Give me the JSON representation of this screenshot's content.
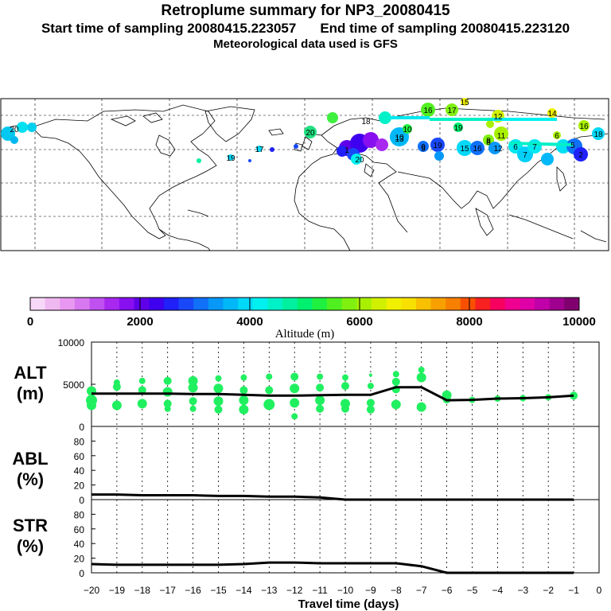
{
  "header": {
    "title": "Retroplume summary for NP3_20080415",
    "start_label": "Start time of sampling 20080415.223057",
    "end_label": "End time of sampling 20080415.223120",
    "met_label": "Meteorological data used is GFS"
  },
  "colorbar": {
    "ticks": [
      "0",
      "2000",
      "4000",
      "6000",
      "8000",
      "10000"
    ],
    "title": "Altitude (m)",
    "colors": [
      "#f8d8f8",
      "#f0b8f0",
      "#e898f0",
      "#d878f0",
      "#c050f0",
      "#a828f0",
      "#8810f0",
      "#6000e8",
      "#4000f0",
      "#2020f8",
      "#1848f8",
      "#1070f8",
      "#0898f8",
      "#00b8f8",
      "#00d8f8",
      "#00f0f0",
      "#00f0c8",
      "#00f0a0",
      "#00f070",
      "#20f040",
      "#50f020",
      "#80f010",
      "#a8f000",
      "#d0f000",
      "#f0f000",
      "#f8e000",
      "#f8c000",
      "#f8a000",
      "#f88000",
      "#f85000",
      "#f82020",
      "#f80060",
      "#f00090",
      "#e000a8",
      "#c000a8",
      "#a00090",
      "#800070"
    ]
  },
  "map": {
    "plume_labels": [
      "20",
      "16",
      "17",
      "15",
      "14",
      "12",
      "10",
      "19",
      "13",
      "11",
      "9",
      "8",
      "7",
      "6",
      "18",
      "20",
      "19",
      "17",
      "16",
      "15",
      "12",
      "10",
      "9",
      "8",
      "7",
      "6",
      "5",
      "2",
      "1",
      "20",
      "16",
      "19",
      "18"
    ]
  },
  "panels": {
    "alt": {
      "label_line1": "ALT",
      "label_line2": "(m)",
      "yticks": [
        "10000",
        "5000",
        "0"
      ]
    },
    "abl": {
      "label_line1": "ABL",
      "label_line2": "(%)",
      "yticks": [
        "80",
        "60",
        "40",
        "20",
        "0"
      ]
    },
    "str": {
      "label_line1": "STR",
      "label_line2": "(%)",
      "yticks": [
        "80",
        "60",
        "40",
        "20",
        "0"
      ]
    }
  },
  "xaxis": {
    "ticks": [
      "−20",
      "−19",
      "−18",
      "−17",
      "−16",
      "−15",
      "−14",
      "−13",
      "−12",
      "−11",
      "−10",
      "−9",
      "−8",
      "−7",
      "−6",
      "−5",
      "−4",
      "−3",
      "−2",
      "−1",
      "0"
    ],
    "title": "Travel time (days)"
  },
  "chart_data": [
    {
      "type": "line",
      "name": "ALT",
      "xlabel": "Travel time (days)",
      "ylabel": "ALT (m)",
      "xlim": [
        -20,
        0
      ],
      "ylim": [
        0,
        10000
      ],
      "x": [
        -20,
        -19,
        -18,
        -17,
        -16,
        -15,
        -14,
        -13,
        -12,
        -11,
        -10,
        -9,
        -8,
        -7,
        -6,
        -5,
        -4,
        -3,
        -2,
        -1
      ],
      "values": [
        3900,
        3900,
        3900,
        3900,
        3850,
        3850,
        3750,
        3650,
        3650,
        3700,
        3750,
        3750,
        4650,
        4650,
        3100,
        3150,
        3300,
        3350,
        3450,
        3650
      ],
      "scatter": [
        {
          "x": -20,
          "y": [
            4200,
            3100,
            2500
          ],
          "r": [
            6,
            7,
            6
          ]
        },
        {
          "x": -19,
          "y": [
            5200,
            4700,
            2500
          ],
          "r": [
            4,
            5,
            6
          ]
        },
        {
          "x": -18,
          "y": [
            5400,
            4300,
            2700
          ],
          "r": [
            4,
            5,
            6
          ]
        },
        {
          "x": -17,
          "y": [
            5400,
            4100,
            2700,
            2100
          ],
          "r": [
            5,
            6,
            5,
            4
          ]
        },
        {
          "x": -16,
          "y": [
            5400,
            4600,
            3000,
            2100
          ],
          "r": [
            6,
            6,
            5,
            4
          ]
        },
        {
          "x": -15,
          "y": [
            5700,
            4500,
            3000,
            2000
          ],
          "r": [
            4,
            6,
            6,
            5
          ]
        },
        {
          "x": -14,
          "y": [
            5800,
            4300,
            3100,
            2000
          ],
          "r": [
            4,
            5,
            6,
            6
          ]
        },
        {
          "x": -13,
          "y": [
            5900,
            4300,
            2600
          ],
          "r": [
            4,
            5,
            7
          ]
        },
        {
          "x": -12,
          "y": [
            5900,
            4500,
            2800,
            1200
          ],
          "r": [
            5,
            6,
            6,
            4
          ]
        },
        {
          "x": -11,
          "y": [
            5900,
            4600,
            3100,
            2100
          ],
          "r": [
            4,
            5,
            6,
            5
          ]
        },
        {
          "x": -10,
          "y": [
            5800,
            4800,
            2700,
            2100
          ],
          "r": [
            4,
            5,
            6,
            5
          ]
        },
        {
          "x": -9,
          "y": [
            6100,
            4800,
            2800,
            2000
          ],
          "r": [
            2,
            4,
            5,
            5
          ]
        },
        {
          "x": -8,
          "y": [
            6200,
            5300,
            4400,
            2600
          ],
          "r": [
            4,
            5,
            5,
            6
          ]
        },
        {
          "x": -7,
          "y": [
            6700,
            5800,
            2300
          ],
          "r": [
            4,
            6,
            6
          ]
        },
        {
          "x": -6,
          "y": [
            3700,
            3200
          ],
          "r": [
            6,
            5
          ]
        },
        {
          "x": -5,
          "y": [
            3150
          ],
          "r": [
            4
          ]
        },
        {
          "x": -4,
          "y": [
            3300
          ],
          "r": [
            4
          ]
        },
        {
          "x": -3,
          "y": [
            3350
          ],
          "r": [
            4
          ]
        },
        {
          "x": -2,
          "y": [
            3450
          ],
          "r": [
            4
          ]
        },
        {
          "x": -1,
          "y": [
            3650
          ],
          "r": [
            5
          ]
        }
      ],
      "point_color": "#20f060"
    },
    {
      "type": "line",
      "name": "ABL",
      "ylabel": "ABL (%)",
      "xlim": [
        -20,
        0
      ],
      "ylim": [
        0,
        100
      ],
      "x": [
        -20,
        -19,
        -18,
        -17,
        -16,
        -15,
        -14,
        -13,
        -12,
        -11,
        -10,
        -9,
        -8,
        -7,
        -6,
        -5,
        -4,
        -3,
        -2,
        -1
      ],
      "values": [
        7,
        7,
        6,
        6,
        6,
        5,
        5,
        4,
        4,
        3,
        0,
        0,
        0,
        0,
        0,
        0,
        0,
        0,
        0,
        0
      ]
    },
    {
      "type": "line",
      "name": "STR",
      "ylabel": "STR (%)",
      "xlim": [
        -20,
        0
      ],
      "ylim": [
        0,
        100
      ],
      "x": [
        -20,
        -19,
        -18,
        -17,
        -16,
        -15,
        -14,
        -13,
        -12,
        -11,
        -10,
        -9,
        -8,
        -7,
        -6,
        -5,
        -4,
        -3,
        -2,
        -1
      ],
      "values": [
        12,
        11,
        11,
        11,
        11,
        11,
        12,
        14,
        14,
        13,
        13,
        13,
        13,
        9,
        0,
        0,
        0,
        0,
        0,
        0
      ]
    }
  ]
}
